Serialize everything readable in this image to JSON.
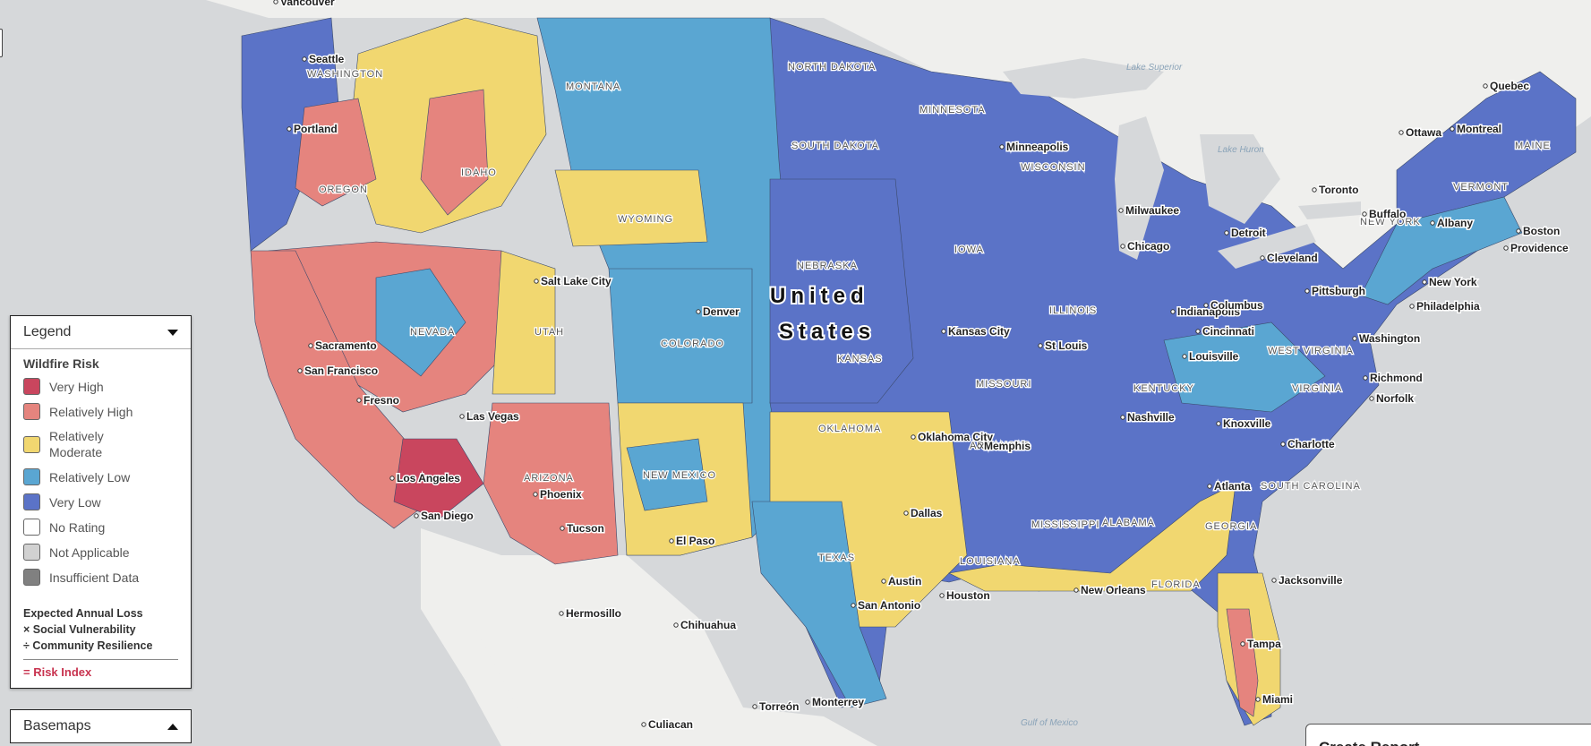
{
  "map": {
    "country_label_line1": "United",
    "country_label_line2": "States",
    "cities": [
      {
        "name": "Vancouver"
      },
      {
        "name": "Seattle"
      },
      {
        "name": "Portland"
      },
      {
        "name": "Sacramento"
      },
      {
        "name": "San Francisco"
      },
      {
        "name": "Fresno"
      },
      {
        "name": "Los Angeles"
      },
      {
        "name": "San Diego"
      },
      {
        "name": "Las Vegas"
      },
      {
        "name": "Salt Lake City"
      },
      {
        "name": "Denver"
      },
      {
        "name": "Phoenix"
      },
      {
        "name": "Tucson"
      },
      {
        "name": "El Paso"
      },
      {
        "name": "Hermosillo"
      },
      {
        "name": "Chihuahua"
      },
      {
        "name": "Torreón"
      },
      {
        "name": "Monterrey"
      },
      {
        "name": "Culiacan"
      },
      {
        "name": "Kansas City"
      },
      {
        "name": "Oklahoma City"
      },
      {
        "name": "Dallas"
      },
      {
        "name": "Austin"
      },
      {
        "name": "San Antonio"
      },
      {
        "name": "Houston"
      },
      {
        "name": "New Orleans"
      },
      {
        "name": "Memphis"
      },
      {
        "name": "St Louis"
      },
      {
        "name": "Minneapolis"
      },
      {
        "name": "Milwaukee"
      },
      {
        "name": "Chicago"
      },
      {
        "name": "Detroit"
      },
      {
        "name": "Indianapolis"
      },
      {
        "name": "Cincinnati"
      },
      {
        "name": "Columbus"
      },
      {
        "name": "Cleveland"
      },
      {
        "name": "Pittsburgh"
      },
      {
        "name": "Louisville"
      },
      {
        "name": "Nashville"
      },
      {
        "name": "Knoxville"
      },
      {
        "name": "Atlanta"
      },
      {
        "name": "Charlotte"
      },
      {
        "name": "Jacksonville"
      },
      {
        "name": "Tampa"
      },
      {
        "name": "Miami"
      },
      {
        "name": "Washington"
      },
      {
        "name": "Richmond"
      },
      {
        "name": "Norfolk"
      },
      {
        "name": "Philadelphia"
      },
      {
        "name": "New York"
      },
      {
        "name": "Boston"
      },
      {
        "name": "Providence"
      },
      {
        "name": "Albany"
      },
      {
        "name": "Buffalo"
      },
      {
        "name": "Toronto"
      },
      {
        "name": "Ottawa"
      },
      {
        "name": "Montreal"
      },
      {
        "name": "Quebec"
      }
    ],
    "states": [
      "WASHINGTON",
      "OREGON",
      "IDAHO",
      "MONTANA",
      "NORTH DAKOTA",
      "SOUTH DAKOTA",
      "WYOMING",
      "NEVADA",
      "UTAH",
      "COLORADO",
      "ARIZONA",
      "NEW MEXICO",
      "NEBRASKA",
      "KANSAS",
      "OKLAHOMA",
      "TEXAS",
      "MINNESOTA",
      "IOWA",
      "MISSOURI",
      "ARKANSAS",
      "LOUISIANA",
      "WISCONSIN",
      "ILLINOIS",
      "MISSISSIPPI",
      "ALABAMA",
      "KENTUCKY",
      "GEORGIA",
      "FLORIDA",
      "WEST VIRGINIA",
      "VIRGINIA",
      "SOUTH CAROLINA",
      "NEW YORK",
      "VERMONT",
      "MAINE"
    ],
    "water": [
      "Lake Superior",
      "Lake Huron",
      "Gulf of Mexico"
    ],
    "colors": {
      "very_high": "#c9465e",
      "relatively_high": "#e5847e",
      "relatively_moderate": "#f1d770",
      "relatively_low": "#5aa6d2",
      "very_low": "#5b73c7",
      "land_outside": "#efefed",
      "water": "#d6d8da"
    }
  },
  "legend": {
    "header": "Legend",
    "title": "Wildfire Risk",
    "items": [
      {
        "label": "Very High",
        "color": "#c9465e"
      },
      {
        "label": "Relatively High",
        "color": "#e5847e"
      },
      {
        "label": "Relatively Moderate",
        "color": "#f1d770"
      },
      {
        "label": "Relatively Low",
        "color": "#5aa6d2"
      },
      {
        "label": "Very Low",
        "color": "#5b73c7"
      },
      {
        "label": "No Rating",
        "color": "#ffffff"
      },
      {
        "label": "Not Applicable",
        "color": "#d1d1d1"
      },
      {
        "label": "Insufficient Data",
        "color": "#808080"
      }
    ],
    "formula_line1": "Expected Annual Loss",
    "formula_line2": "× Social Vulnerability",
    "formula_line3": "÷ Community Resilience",
    "result": "= Risk Index"
  },
  "basemaps": {
    "header": "Basemaps"
  },
  "report": {
    "title": "Create Report"
  }
}
